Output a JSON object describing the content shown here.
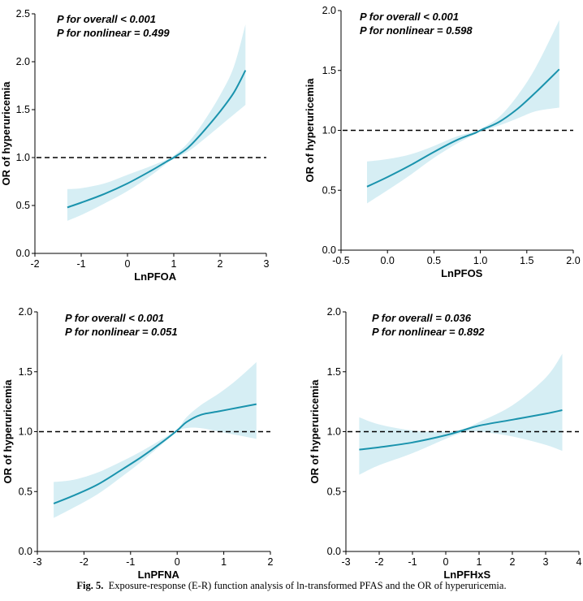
{
  "caption": {
    "label": "Fig. 5.",
    "text": "Exposure-response (E-R) function analysis of ln-transformed PFAS and the OR of hyperuricemia."
  },
  "colors": {
    "line": "#1a93ad",
    "band": "#d6eef4",
    "reference": "#000000"
  },
  "chart_data": [
    {
      "type": "line",
      "xlabel": "LnPFOA",
      "ylabel": "OR of hyperuricemia",
      "xlim": [
        -2,
        3
      ],
      "ylim": [
        0.0,
        2.5
      ],
      "xticks": [
        -2,
        -1,
        0,
        1,
        2,
        3
      ],
      "xtick_labels": [
        "-2",
        "-1",
        "0",
        "1",
        "2",
        "3"
      ],
      "yticks": [
        0.0,
        0.5,
        1.0,
        1.5,
        2.0,
        2.5
      ],
      "ytick_labels": [
        "0.0",
        "0.5",
        "1.0",
        "1.5",
        "2.0",
        "2.5"
      ],
      "reference_line": 1.0,
      "annotations": [
        "P for overall < 0.001",
        "P for nonlinear = 0.499"
      ],
      "x": [
        -1.3,
        -1.0,
        -0.5,
        0.0,
        0.5,
        0.85,
        1.0,
        1.3,
        1.6,
        2.0,
        2.3,
        2.55
      ],
      "y": [
        0.48,
        0.53,
        0.62,
        0.73,
        0.86,
        0.96,
        1.0,
        1.1,
        1.25,
        1.48,
        1.68,
        1.91
      ],
      "lower": [
        0.34,
        0.4,
        0.52,
        0.65,
        0.81,
        0.94,
        0.99,
        1.06,
        1.17,
        1.33,
        1.45,
        1.55
      ],
      "upper": [
        0.67,
        0.68,
        0.73,
        0.82,
        0.91,
        0.98,
        1.02,
        1.15,
        1.34,
        1.65,
        1.95,
        2.39
      ]
    },
    {
      "type": "line",
      "xlabel": "LnPFOS",
      "ylabel": "OR of hyperuricemia",
      "xlim": [
        -0.5,
        2.0
      ],
      "ylim": [
        0.0,
        2.0
      ],
      "xticks": [
        -0.5,
        0.0,
        0.5,
        1.0,
        1.5,
        2.0
      ],
      "xtick_labels": [
        "-0.5",
        "0.0",
        "0.5",
        "1.0",
        "1.5",
        "2.0"
      ],
      "yticks": [
        0.0,
        0.5,
        1.0,
        1.5,
        2.0
      ],
      "ytick_labels": [
        "0.0",
        "0.5",
        "1.0",
        "1.5",
        "2.0"
      ],
      "reference_line": 1.0,
      "annotations": [
        "P for overall < 0.001",
        "P for nonlinear = 0.598"
      ],
      "x": [
        -0.22,
        0.0,
        0.25,
        0.5,
        0.75,
        0.95,
        1.0,
        1.2,
        1.4,
        1.6,
        1.85
      ],
      "y": [
        0.53,
        0.61,
        0.71,
        0.82,
        0.92,
        0.98,
        1.0,
        1.07,
        1.18,
        1.32,
        1.51
      ],
      "lower": [
        0.39,
        0.5,
        0.63,
        0.77,
        0.89,
        0.97,
        0.99,
        1.04,
        1.1,
        1.16,
        1.19
      ],
      "upper": [
        0.74,
        0.76,
        0.8,
        0.87,
        0.95,
        0.99,
        1.01,
        1.11,
        1.29,
        1.53,
        1.92
      ]
    },
    {
      "type": "line",
      "xlabel": "LnPFNA",
      "ylabel": "OR of hyperuricemia",
      "xlim": [
        -3,
        2
      ],
      "ylim": [
        0.0,
        2.0
      ],
      "xticks": [
        -3,
        -2,
        -1,
        0,
        1,
        2
      ],
      "xtick_labels": [
        "-3",
        "-2",
        "-1",
        "0",
        "1",
        "2"
      ],
      "yticks": [
        0.0,
        0.5,
        1.0,
        1.5,
        2.0
      ],
      "ytick_labels": [
        "0.0",
        "0.5",
        "1.0",
        "1.5",
        "2.0"
      ],
      "reference_line": 1.0,
      "annotations": [
        "P for overall < 0.001",
        "P for nonlinear = 0.051"
      ],
      "x": [
        -2.65,
        -2.2,
        -1.7,
        -1.2,
        -0.8,
        -0.4,
        0.0,
        0.2,
        0.5,
        0.9,
        1.3,
        1.7
      ],
      "y": [
        0.4,
        0.47,
        0.56,
        0.68,
        0.78,
        0.89,
        1.01,
        1.08,
        1.14,
        1.17,
        1.2,
        1.23
      ],
      "lower": [
        0.28,
        0.37,
        0.48,
        0.62,
        0.74,
        0.87,
        1.0,
        1.03,
        1.03,
        1.0,
        0.97,
        0.94
      ],
      "upper": [
        0.58,
        0.6,
        0.66,
        0.75,
        0.83,
        0.92,
        1.02,
        1.12,
        1.22,
        1.32,
        1.44,
        1.58
      ]
    },
    {
      "type": "line",
      "xlabel": "LnPFHxS",
      "ylabel": "OR of hyperuricemia",
      "xlim": [
        -3,
        4
      ],
      "ylim": [
        0.0,
        2.0
      ],
      "xticks": [
        -3,
        -2,
        -1,
        0,
        1,
        2,
        3,
        4
      ],
      "xtick_labels": [
        "-3",
        "-2",
        "-1",
        "0",
        "1",
        "2",
        "3",
        "4"
      ],
      "yticks": [
        0.0,
        0.5,
        1.0,
        1.5,
        2.0
      ],
      "ytick_labels": [
        "0.0",
        "0.5",
        "1.0",
        "1.5",
        "2.0"
      ],
      "reference_line": 1.0,
      "annotations": [
        "P for overall = 0.036",
        "P for nonlinear = 0.892"
      ],
      "x": [
        -2.6,
        -2.0,
        -1.0,
        0.0,
        0.5,
        1.0,
        2.0,
        3.0,
        3.5
      ],
      "y": [
        0.85,
        0.87,
        0.91,
        0.97,
        1.01,
        1.05,
        1.1,
        1.15,
        1.18
      ],
      "lower": [
        0.64,
        0.72,
        0.82,
        0.94,
        0.99,
        1.0,
        0.96,
        0.89,
        0.84
      ],
      "upper": [
        1.12,
        1.06,
        1.01,
        1.0,
        1.02,
        1.08,
        1.22,
        1.45,
        1.65
      ]
    }
  ]
}
